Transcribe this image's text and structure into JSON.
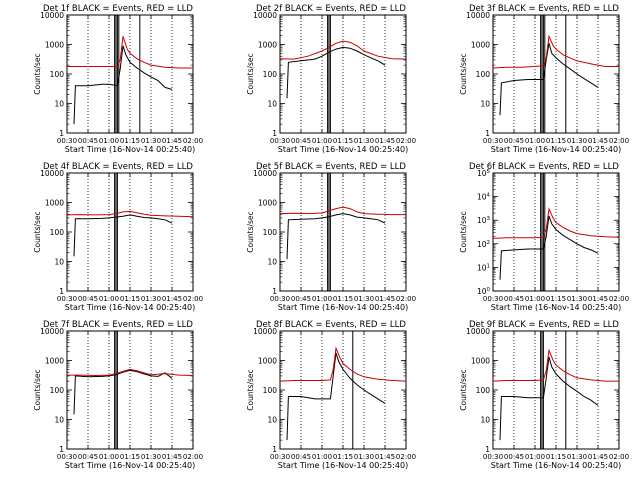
{
  "figure": {
    "start_label": "Start Time (16-Nov-14 00:25:40)",
    "ylabel": "Counts/sec",
    "time_ticks": [
      "00:30",
      "00:45",
      "01:00",
      "01:15",
      "01:30",
      "01:45",
      "02:00"
    ],
    "colors": {
      "events": "#000000",
      "lld": "#cc0000",
      "axes": "#000000"
    }
  },
  "chart_data": [
    {
      "type": "line",
      "title": "Det 1f BLACK = Events, RED = LLD",
      "ylabel": "Counts/sec",
      "xlabel": "Start Time (16-Nov-14 00:25:40)",
      "yscale": "log",
      "ylim": [
        1,
        10000
      ],
      "ytick_style": "plain",
      "xlim": [
        "00:30",
        "02:00"
      ],
      "dotted_lines": [
        "00:45",
        "01:00",
        "01:15",
        "01:30",
        "01:45"
      ],
      "solid_lines": [
        "01:04",
        "01:05",
        "01:06",
        "01:07",
        "01:22"
      ],
      "series": [
        {
          "name": "Events",
          "x": [
            "00:35",
            "00:36",
            "00:45",
            "00:55",
            "01:00",
            "01:06",
            "01:08",
            "01:10",
            "01:12",
            "01:15",
            "01:20",
            "01:25",
            "01:30",
            "01:35",
            "01:40",
            "01:45"
          ],
          "values": [
            2,
            40,
            40,
            45,
            45,
            40,
            150,
            900,
            450,
            250,
            160,
            110,
            80,
            60,
            35,
            30
          ]
        },
        {
          "name": "LLD",
          "x": [
            "00:30",
            "00:40",
            "00:50",
            "01:00",
            "01:06",
            "01:08",
            "01:10",
            "01:13",
            "01:15",
            "01:20",
            "01:25",
            "01:30",
            "01:40",
            "01:50",
            "02:00"
          ],
          "values": [
            180,
            180,
            180,
            180,
            180,
            300,
            1900,
            700,
            500,
            330,
            250,
            200,
            170,
            160,
            160
          ]
        }
      ]
    },
    {
      "type": "line",
      "title": "Det 2f BLACK = Events, RED = LLD",
      "ylabel": "Counts/sec",
      "xlabel": "Start Time (16-Nov-14 00:25:40)",
      "yscale": "log",
      "ylim": [
        1,
        10000
      ],
      "ytick_style": "plain",
      "xlim": [
        "00:30",
        "02:00"
      ],
      "dotted_lines": [
        "00:45",
        "01:00",
        "01:15",
        "01:30",
        "01:45"
      ],
      "solid_lines": [
        "01:04",
        "01:05",
        "01:06"
      ],
      "series": [
        {
          "name": "Events",
          "x": [
            "00:35",
            "00:36",
            "00:45",
            "00:55",
            "01:00",
            "01:05",
            "01:10",
            "01:15",
            "01:20",
            "01:25",
            "01:30",
            "01:35",
            "01:40",
            "01:45"
          ],
          "values": [
            15,
            250,
            280,
            320,
            400,
            550,
            700,
            800,
            750,
            600,
            450,
            350,
            280,
            200
          ]
        },
        {
          "name": "LLD",
          "x": [
            "00:30",
            "00:40",
            "00:50",
            "01:00",
            "01:05",
            "01:10",
            "01:15",
            "01:20",
            "01:25",
            "01:30",
            "01:40",
            "01:50",
            "02:00"
          ],
          "values": [
            330,
            320,
            400,
            600,
            800,
            1100,
            1300,
            1200,
            900,
            600,
            400,
            330,
            320
          ]
        }
      ]
    },
    {
      "type": "line",
      "title": "Det 3f BLACK = Events, RED = LLD",
      "ylabel": "Counts/sec",
      "xlabel": "Start Time (16-Nov-14 00:25:40)",
      "yscale": "log",
      "ylim": [
        1,
        10000
      ],
      "ytick_style": "plain",
      "xlim": [
        "00:30",
        "02:00"
      ],
      "dotted_lines": [
        "00:45",
        "01:00",
        "01:15",
        "01:30",
        "01:45"
      ],
      "solid_lines": [
        "01:04",
        "01:05",
        "01:06",
        "01:07",
        "01:22"
      ],
      "series": [
        {
          "name": "Events",
          "x": [
            "00:35",
            "00:36",
            "00:45",
            "00:55",
            "01:00",
            "01:06",
            "01:08",
            "01:10",
            "01:12",
            "01:15",
            "01:20",
            "01:25",
            "01:30",
            "01:35",
            "01:40",
            "01:45"
          ],
          "values": [
            4,
            50,
            60,
            65,
            65,
            65,
            300,
            1100,
            500,
            350,
            220,
            150,
            100,
            70,
            50,
            35
          ]
        },
        {
          "name": "LLD",
          "x": [
            "00:30",
            "00:40",
            "00:50",
            "01:00",
            "01:06",
            "01:08",
            "01:10",
            "01:13",
            "01:15",
            "01:20",
            "01:25",
            "01:30",
            "01:40",
            "01:50",
            "02:00"
          ],
          "values": [
            160,
            170,
            170,
            180,
            190,
            350,
            1900,
            900,
            700,
            450,
            350,
            280,
            220,
            180,
            180
          ]
        }
      ]
    },
    {
      "type": "line",
      "title": "Det 4f BLACK = Events, RED = LLD",
      "ylabel": "Counts/sec",
      "xlabel": "Start Time (16-Nov-14 00:25:40)",
      "yscale": "log",
      "ylim": [
        1,
        10000
      ],
      "ytick_style": "plain",
      "xlim": [
        "00:30",
        "02:00"
      ],
      "dotted_lines": [
        "00:45",
        "01:00",
        "01:15",
        "01:30",
        "01:45"
      ],
      "solid_lines": [
        "01:04",
        "01:05",
        "01:06"
      ],
      "series": [
        {
          "name": "Events",
          "x": [
            "00:35",
            "00:36",
            "00:45",
            "00:55",
            "01:00",
            "01:05",
            "01:10",
            "01:15",
            "01:20",
            "01:25",
            "01:30",
            "01:35",
            "01:40",
            "01:45"
          ],
          "values": [
            15,
            280,
            280,
            290,
            300,
            320,
            340,
            380,
            340,
            310,
            300,
            280,
            260,
            200
          ]
        },
        {
          "name": "LLD",
          "x": [
            "00:30",
            "00:40",
            "00:50",
            "01:00",
            "01:05",
            "01:10",
            "01:15",
            "01:20",
            "01:25",
            "01:30",
            "01:40",
            "01:50",
            "02:00"
          ],
          "values": [
            380,
            390,
            380,
            390,
            420,
            480,
            500,
            450,
            400,
            370,
            350,
            340,
            330
          ]
        }
      ]
    },
    {
      "type": "line",
      "title": "Det 5f BLACK = Events, RED = LLD",
      "ylabel": "Counts/sec",
      "xlabel": "Start Time (16-Nov-14 00:25:40)",
      "yscale": "log",
      "ylim": [
        1,
        10000
      ],
      "ytick_style": "plain",
      "xlim": [
        "00:30",
        "02:00"
      ],
      "dotted_lines": [
        "00:45",
        "01:00",
        "01:15",
        "01:30",
        "01:45"
      ],
      "solid_lines": [
        "01:04",
        "01:05",
        "01:06"
      ],
      "series": [
        {
          "name": "Events",
          "x": [
            "00:35",
            "00:36",
            "00:45",
            "00:55",
            "01:00",
            "01:05",
            "01:10",
            "01:15",
            "01:20",
            "01:25",
            "01:30",
            "01:35",
            "01:40",
            "01:45"
          ],
          "values": [
            12,
            260,
            270,
            280,
            300,
            330,
            380,
            420,
            380,
            320,
            300,
            280,
            260,
            200
          ]
        },
        {
          "name": "LLD",
          "x": [
            "00:30",
            "00:40",
            "00:50",
            "01:00",
            "01:05",
            "01:10",
            "01:15",
            "01:20",
            "01:25",
            "01:30",
            "01:40",
            "01:50",
            "02:00"
          ],
          "values": [
            420,
            430,
            420,
            440,
            520,
            620,
            700,
            620,
            480,
            420,
            400,
            390,
            390
          ]
        }
      ]
    },
    {
      "type": "line",
      "title": "Det 6f BLACK = Events, RED = LLD",
      "ylabel": "Counts/sec",
      "xlabel": "Start Time (16-Nov-14 00:25:40)",
      "yscale": "log",
      "ylim": [
        1,
        100000
      ],
      "ytick_style": "power",
      "xlim": [
        "00:30",
        "02:00"
      ],
      "dotted_lines": [
        "00:45",
        "01:00",
        "01:15",
        "01:30",
        "01:45"
      ],
      "solid_lines": [
        "01:04",
        "01:05",
        "01:06",
        "01:07"
      ],
      "series": [
        {
          "name": "Events",
          "x": [
            "00:35",
            "00:36",
            "00:45",
            "00:55",
            "01:00",
            "01:06",
            "01:08",
            "01:10",
            "01:12",
            "01:15",
            "01:20",
            "01:25",
            "01:30",
            "01:35",
            "01:40",
            "01:45"
          ],
          "values": [
            3,
            50,
            55,
            60,
            60,
            60,
            200,
            1500,
            700,
            400,
            230,
            150,
            100,
            70,
            55,
            40
          ]
        },
        {
          "name": "LLD",
          "x": [
            "00:30",
            "00:40",
            "00:50",
            "01:00",
            "01:06",
            "01:08",
            "01:10",
            "01:13",
            "01:15",
            "01:20",
            "01:25",
            "01:30",
            "01:40",
            "01:50",
            "02:00"
          ],
          "values": [
            170,
            180,
            180,
            180,
            190,
            400,
            3000,
            1200,
            800,
            500,
            350,
            270,
            220,
            200,
            190
          ]
        }
      ]
    },
    {
      "type": "line",
      "title": "Det 7f BLACK = Events, RED = LLD",
      "ylabel": "Counts/sec",
      "xlabel": "Start Time (16-Nov-14 00:25:40)",
      "yscale": "log",
      "ylim": [
        1,
        10000
      ],
      "ytick_style": "plain",
      "xlim": [
        "00:30",
        "02:00"
      ],
      "dotted_lines": [
        "00:45",
        "01:00",
        "01:15",
        "01:30",
        "01:45"
      ],
      "solid_lines": [
        "01:04",
        "01:05",
        "01:06"
      ],
      "series": [
        {
          "name": "Events",
          "x": [
            "00:35",
            "00:36",
            "00:45",
            "00:55",
            "01:00",
            "01:05",
            "01:10",
            "01:15",
            "01:20",
            "01:25",
            "01:30",
            "01:35",
            "01:40",
            "01:45"
          ],
          "values": [
            15,
            300,
            280,
            290,
            300,
            330,
            400,
            460,
            420,
            350,
            300,
            290,
            380,
            250
          ]
        },
        {
          "name": "LLD",
          "x": [
            "00:30",
            "00:40",
            "00:50",
            "01:00",
            "01:05",
            "01:10",
            "01:15",
            "01:20",
            "01:25",
            "01:30",
            "01:40",
            "01:50",
            "02:00"
          ],
          "values": [
            320,
            320,
            310,
            320,
            360,
            430,
            500,
            450,
            380,
            330,
            360,
            320,
            310
          ]
        }
      ]
    },
    {
      "type": "line",
      "title": "Det 8f BLACK = Events, RED = LLD",
      "ylabel": "Counts/sec",
      "xlabel": "Start Time (16-Nov-14 00:25:40)",
      "yscale": "log",
      "ylim": [
        1,
        10000
      ],
      "ytick_style": "plain",
      "xlim": [
        "00:30",
        "02:00"
      ],
      "dotted_lines": [
        "00:45",
        "01:00",
        "01:15",
        "01:30",
        "01:45"
      ],
      "solid_lines": [
        "01:22"
      ],
      "series": [
        {
          "name": "Events",
          "x": [
            "00:35",
            "00:36",
            "00:45",
            "00:55",
            "01:00",
            "01:06",
            "01:08",
            "01:10",
            "01:12",
            "01:15",
            "01:20",
            "01:25",
            "01:30",
            "01:35",
            "01:40",
            "01:45"
          ],
          "values": [
            2,
            60,
            60,
            50,
            50,
            50,
            300,
            1800,
            900,
            500,
            250,
            150,
            100,
            70,
            50,
            35
          ]
        },
        {
          "name": "LLD",
          "x": [
            "00:30",
            "00:40",
            "00:50",
            "01:00",
            "01:06",
            "01:08",
            "01:10",
            "01:13",
            "01:15",
            "01:20",
            "01:25",
            "01:30",
            "01:40",
            "01:50",
            "02:00"
          ],
          "values": [
            200,
            210,
            210,
            210,
            220,
            500,
            2600,
            1200,
            800,
            500,
            350,
            280,
            230,
            210,
            200
          ]
        }
      ]
    },
    {
      "type": "line",
      "title": "Det 9f BLACK = Events, RED = LLD",
      "ylabel": "Counts/sec",
      "xlabel": "Start Time (16-Nov-14 00:25:40)",
      "yscale": "log",
      "ylim": [
        1,
        10000
      ],
      "ytick_style": "plain",
      "xlim": [
        "00:30",
        "02:00"
      ],
      "dotted_lines": [
        "00:45",
        "01:00",
        "01:15",
        "01:30",
        "01:45"
      ],
      "solid_lines": [
        "01:04",
        "01:05",
        "01:06",
        "01:22"
      ],
      "series": [
        {
          "name": "Events",
          "x": [
            "00:35",
            "00:36",
            "00:45",
            "00:55",
            "01:00",
            "01:06",
            "01:08",
            "01:10",
            "01:12",
            "01:15",
            "01:20",
            "01:25",
            "01:30",
            "01:35",
            "01:40",
            "01:45"
          ],
          "values": [
            2,
            60,
            60,
            55,
            55,
            55,
            250,
            1300,
            600,
            350,
            200,
            130,
            90,
            60,
            45,
            30
          ]
        },
        {
          "name": "LLD",
          "x": [
            "00:30",
            "00:40",
            "00:50",
            "01:00",
            "01:06",
            "01:08",
            "01:10",
            "01:13",
            "01:15",
            "01:20",
            "01:25",
            "01:30",
            "01:40",
            "01:50",
            "02:00"
          ],
          "values": [
            200,
            210,
            210,
            210,
            220,
            450,
            2200,
            1000,
            700,
            450,
            330,
            260,
            220,
            200,
            200
          ]
        }
      ]
    }
  ]
}
